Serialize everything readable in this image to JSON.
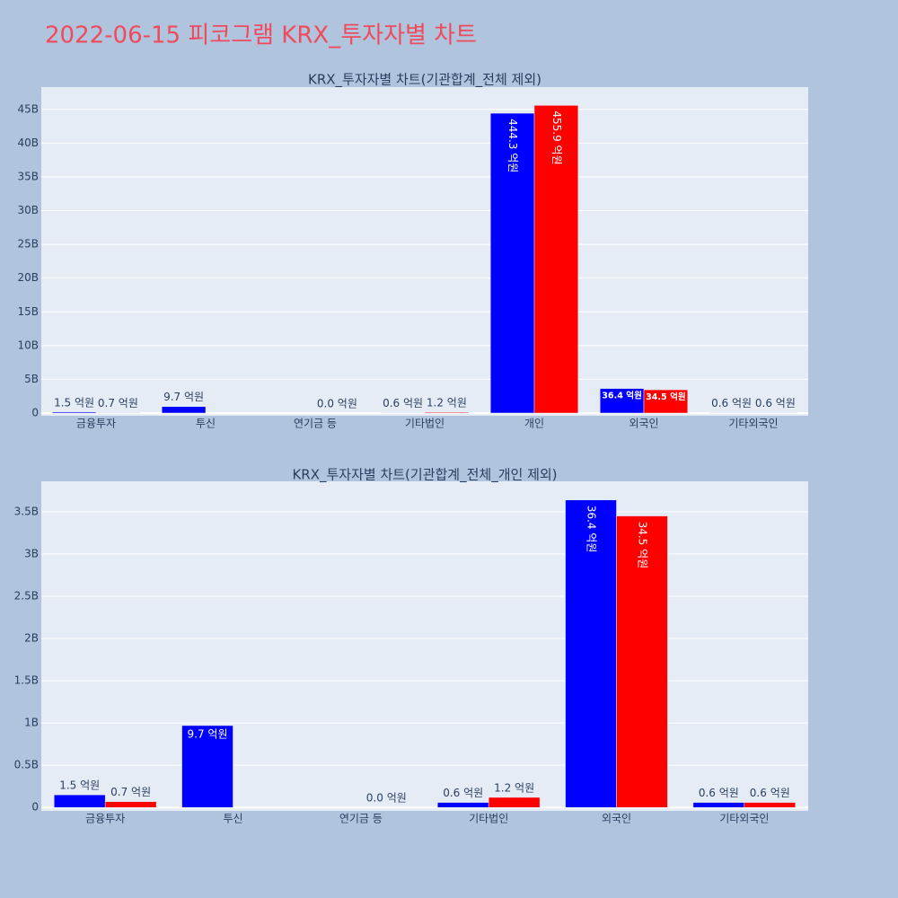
{
  "title": "2022-06-15 피코그램 KRX_투자자별 차트",
  "chart_data": [
    {
      "type": "bar",
      "title": "KRX_투자자별 차트(기관합계_전체 제외)",
      "categories": [
        "금융투자",
        "투신",
        "연기금 등",
        "기타법인",
        "개인",
        "외국인",
        "기타외국인"
      ],
      "series": [
        {
          "color": "#0000ff",
          "values": [
            150000000,
            970000000,
            null,
            60000000,
            44430000000,
            3640000000,
            60000000
          ],
          "value_labels": [
            "1.5 억원",
            "9.7 억원",
            null,
            "0.6 억원",
            "444.3 억원",
            "36.4 억원",
            "0.6 억원"
          ]
        },
        {
          "color": "#ff0000",
          "values": [
            70000000,
            null,
            0,
            120000000,
            45590000000,
            3450000000,
            60000000
          ],
          "value_labels": [
            "0.7 억원",
            null,
            "0.0 억원",
            "1.2 억원",
            "455.9 억원",
            "34.5 억원",
            "0.6 억원"
          ]
        }
      ],
      "ylim": [
        -400000000,
        48300000000
      ],
      "yticks": [
        0,
        {
          "value": 5000000000,
          "label": "5B"
        },
        {
          "value": 10000000000,
          "label": "10B"
        },
        {
          "value": 15000000000,
          "label": "15B"
        },
        {
          "value": 20000000000,
          "label": "20B"
        },
        {
          "value": 25000000000,
          "label": "25B"
        },
        {
          "value": 30000000000,
          "label": "30B"
        },
        {
          "value": 35000000000,
          "label": "35B"
        },
        {
          "value": 40000000000,
          "label": "40B"
        },
        {
          "value": 45000000000,
          "label": "45B"
        }
      ],
      "grid": true
    },
    {
      "type": "bar",
      "title": "KRX_투자자별 차트(기관합계_전체_개인 제외)",
      "categories": [
        "금융투자",
        "투신",
        "연기금 등",
        "기타법인",
        "외국인",
        "기타외국인"
      ],
      "series": [
        {
          "color": "#0000ff",
          "values": [
            150000000,
            970000000,
            null,
            60000000,
            3640000000,
            60000000
          ],
          "value_labels": [
            "1.5 억원",
            "9.7 억원",
            null,
            "0.6 억원",
            "36.4 억원",
            "0.6 억원"
          ]
        },
        {
          "color": "#ff0000",
          "values": [
            70000000,
            null,
            0,
            120000000,
            3450000000,
            60000000
          ],
          "value_labels": [
            "0.7 억원",
            null,
            "0.0 억원",
            "1.2 억원",
            "34.5 억원",
            "0.6 억원"
          ]
        }
      ],
      "ylim": [
        -40000000,
        3860000000
      ],
      "yticks": [
        0,
        {
          "value": 500000000,
          "label": "0.5B"
        },
        {
          "value": 1000000000,
          "label": "1B"
        },
        {
          "value": 1500000000,
          "label": "1.5B"
        },
        {
          "value": 2000000000,
          "label": "2B"
        },
        {
          "value": 2500000000,
          "label": "2.5B"
        },
        {
          "value": 3000000000,
          "label": "3B"
        },
        {
          "value": 3500000000,
          "label": "3.5B"
        }
      ],
      "grid": true
    }
  ]
}
